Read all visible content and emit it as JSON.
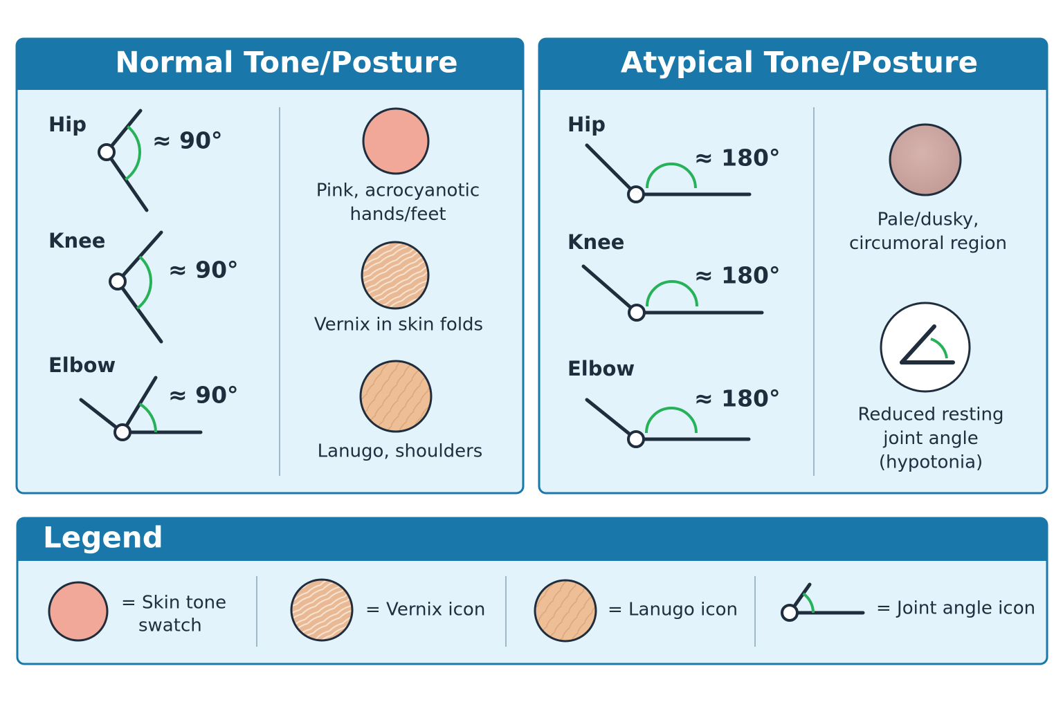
{
  "panels": [
    {
      "title": "Normal Tone/Posture",
      "joints": [
        {
          "label": "Hip",
          "angle": "≈ 90°"
        },
        {
          "label": "Knee",
          "angle": "≈ 90°"
        },
        {
          "label": "Elbow",
          "angle": "≈ 90°"
        }
      ],
      "findings": [
        {
          "lines": [
            "Pink, acrocyanotic",
            "hands/feet"
          ]
        },
        {
          "lines": [
            "Vernix in skin folds"
          ]
        },
        {
          "lines": [
            "Lanugo, shoulders"
          ]
        }
      ]
    },
    {
      "title": "Atypical Tone/Posture",
      "joints": [
        {
          "label": "Hip",
          "angle": "≈ 180°"
        },
        {
          "label": "Knee",
          "angle": "≈ 180°"
        },
        {
          "label": "Elbow",
          "angle": "≈ 180°"
        }
      ],
      "findings": [
        {
          "lines": [
            "Pale/dusky,",
            "circumoral region"
          ]
        },
        {
          "lines": [
            "Reduced resting",
            "joint angle",
            "(hypotonia)"
          ]
        }
      ]
    }
  ],
  "legend": {
    "title": "Legend",
    "items": [
      {
        "lines": [
          "= Skin tone",
          "swatch"
        ]
      },
      {
        "lines": [
          "= Vernix icon"
        ]
      },
      {
        "lines": [
          "= Lanugo icon"
        ]
      },
      {
        "lines": [
          "= Joint angle icon"
        ]
      }
    ]
  }
}
